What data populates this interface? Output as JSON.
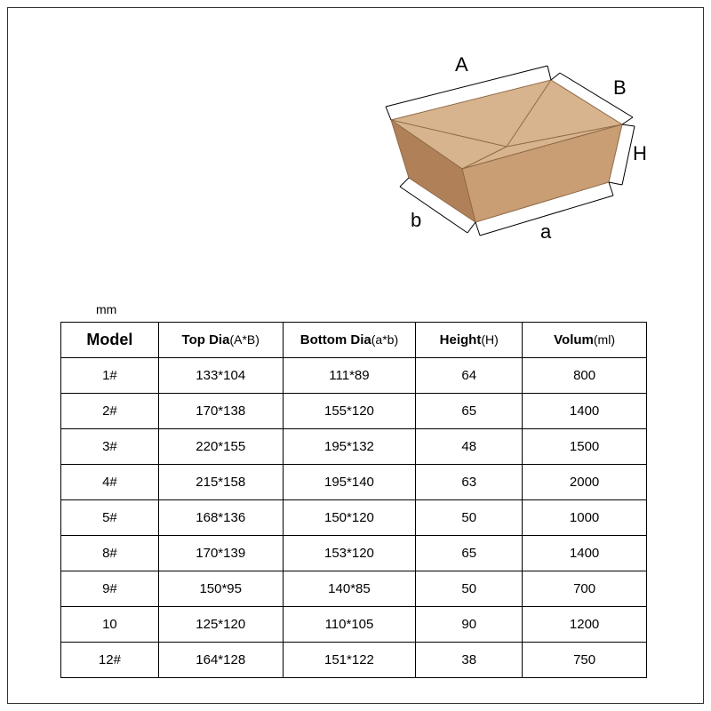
{
  "unit": "mm",
  "diagram": {
    "labels": {
      "A": "A",
      "B": "B",
      "H": "H",
      "a": "a",
      "b": "b"
    },
    "box_color_light": "#d8b48e",
    "box_color_mid": "#c99e74",
    "box_color_dark": "#b08158",
    "box_color_shadow": "#8f6a47",
    "line_color": "#000000"
  },
  "table": {
    "headers": {
      "model": "Model",
      "topdia_main": "Top Dia",
      "topdia_sub": "(A*B)",
      "botdia_main": "Bottom Dia",
      "botdia_sub": "(a*b)",
      "height_main": "Height",
      "height_sub": "(H)",
      "volum_main": "Volum",
      "volum_sub": "(ml)"
    },
    "rows": [
      {
        "model": "1#",
        "topdia": "133*104",
        "botdia": "111*89",
        "height": "64",
        "volum": "800"
      },
      {
        "model": "2#",
        "topdia": "170*138",
        "botdia": "155*120",
        "height": "65",
        "volum": "1400"
      },
      {
        "model": "3#",
        "topdia": "220*155",
        "botdia": "195*132",
        "height": "48",
        "volum": "1500"
      },
      {
        "model": "4#",
        "topdia": "215*158",
        "botdia": "195*140",
        "height": "63",
        "volum": "2000"
      },
      {
        "model": "5#",
        "topdia": "168*136",
        "botdia": "150*120",
        "height": "50",
        "volum": "1000"
      },
      {
        "model": "8#",
        "topdia": "170*139",
        "botdia": "153*120",
        "height": "65",
        "volum": "1400"
      },
      {
        "model": "9#",
        "topdia": "150*95",
        "botdia": "140*85",
        "height": "50",
        "volum": "700"
      },
      {
        "model": "10",
        "topdia": "125*120",
        "botdia": "110*105",
        "height": "90",
        "volum": "1200"
      },
      {
        "model": "12#",
        "topdia": "164*128",
        "botdia": "151*122",
        "height": "38",
        "volum": "750"
      }
    ]
  }
}
